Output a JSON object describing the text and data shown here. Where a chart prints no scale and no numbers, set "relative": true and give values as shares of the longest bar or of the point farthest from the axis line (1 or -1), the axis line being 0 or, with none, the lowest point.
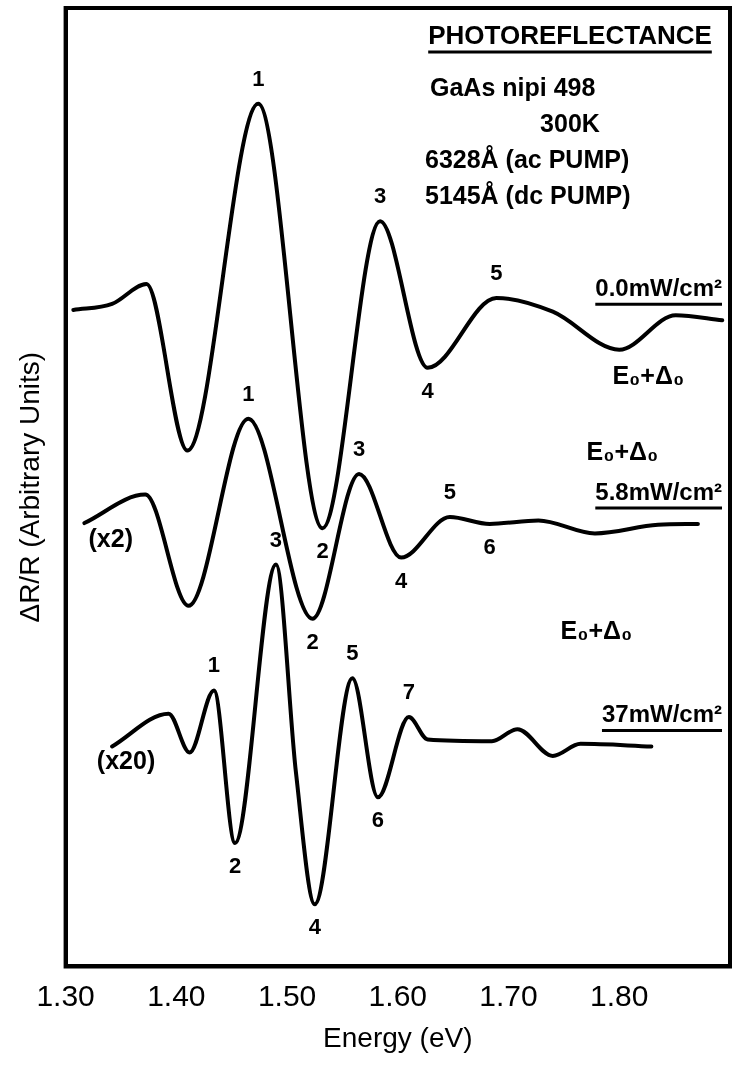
{
  "chart_data": {
    "type": "line",
    "title": "PHOTOREFLECTANCE",
    "xlabel": "Energy (eV)",
    "ylabel": "ΔR/R (Arbitrary Units)",
    "relative": true,
    "legend": false,
    "grid": false,
    "marker": "none",
    "line_style": "solid",
    "xlim": [
      1.3,
      1.9
    ],
    "xticks": [
      {
        "value": 1.3,
        "label": "1.30"
      },
      {
        "value": 1.4,
        "label": "1.40"
      },
      {
        "value": 1.5,
        "label": "1.50"
      },
      {
        "value": 1.6,
        "label": "1.60"
      },
      {
        "value": 1.7,
        "label": "1.70"
      },
      {
        "value": 1.8,
        "label": "1.80"
      }
    ],
    "series": [
      {
        "name": "0.0mW/cm²",
        "color": "#000000",
        "x": [
          1.307,
          1.342,
          1.373,
          1.41,
          1.474,
          1.532,
          1.584,
          1.627,
          1.689,
          1.74,
          1.8,
          1.851,
          1.893
        ],
        "values": [
          0.761,
          0.768,
          0.791,
          0.598,
          1.0,
          0.508,
          0.864,
          0.694,
          0.775,
          0.759,
          0.715,
          0.755,
          0.749
        ]
      },
      {
        "name": "5.8mW/cm²",
        "color": "#000000",
        "x": [
          1.317,
          1.372,
          1.411,
          1.465,
          1.523,
          1.565,
          1.603,
          1.647,
          1.683,
          1.727,
          1.778,
          1.835,
          1.871
        ],
        "values": [
          0.514,
          0.547,
          0.418,
          0.635,
          0.403,
          0.571,
          0.474,
          0.521,
          0.513,
          0.517,
          0.502,
          0.512,
          0.513
        ]
      },
      {
        "name": "37mW/cm²",
        "color": "#000000",
        "x": [
          1.342,
          1.393,
          1.412,
          1.434,
          1.453,
          1.49,
          1.508,
          1.525,
          1.559,
          1.582,
          1.61,
          1.627,
          1.685,
          1.708,
          1.74,
          1.765,
          1.829
        ],
        "values": [
          0.255,
          0.293,
          0.248,
          0.32,
          0.143,
          0.466,
          0.225,
          0.072,
          0.334,
          0.196,
          0.289,
          0.263,
          0.261,
          0.275,
          0.244,
          0.258,
          0.255
        ]
      }
    ],
    "annotations": [
      "GaAs nipi 498",
      "300K",
      "6328Å (ac PUMP)",
      "5145Å (dc PUMP)",
      "E₀+Δ₀",
      "(x2)",
      "E₀+Δ₀",
      "(x20)",
      "E₀+Δ₀",
      {
        "text": "1",
        "x": 1.474,
        "y": 1.0
      },
      {
        "text": "2",
        "x": 1.532,
        "y": 0.508
      },
      {
        "text": "3",
        "x": 1.584,
        "y": 0.864
      },
      {
        "text": "4",
        "x": 1.627,
        "y": 0.694
      },
      {
        "text": "5",
        "x": 1.689,
        "y": 0.775
      },
      {
        "text": "1",
        "x": 1.465,
        "y": 0.635
      },
      {
        "text": "2",
        "x": 1.523,
        "y": 0.403
      },
      {
        "text": "3",
        "x": 1.565,
        "y": 0.571
      },
      {
        "text": "4",
        "x": 1.603,
        "y": 0.474
      },
      {
        "text": "5",
        "x": 1.647,
        "y": 0.521
      },
      {
        "text": "6",
        "x": 1.683,
        "y": 0.513
      },
      {
        "text": "1",
        "x": 1.434,
        "y": 0.32
      },
      {
        "text": "2",
        "x": 1.453,
        "y": 0.143
      },
      {
        "text": "3",
        "x": 1.49,
        "y": 0.466
      },
      {
        "text": "4",
        "x": 1.525,
        "y": 0.072
      },
      {
        "text": "5",
        "x": 1.559,
        "y": 0.334
      },
      {
        "text": "6",
        "x": 1.582,
        "y": 0.196
      },
      {
        "text": "7",
        "x": 1.61,
        "y": 0.289
      }
    ]
  }
}
